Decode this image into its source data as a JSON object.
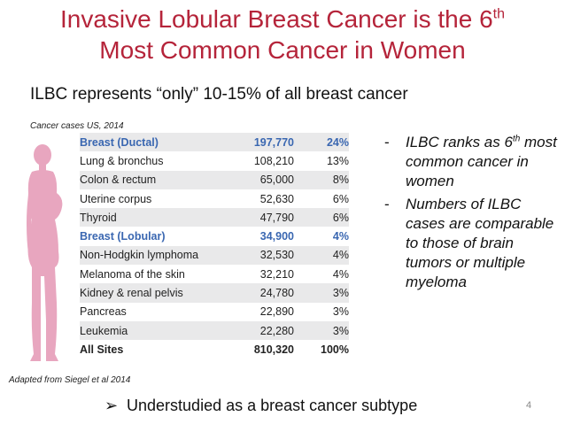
{
  "slide": {
    "title_line1_pre": "Invasive Lobular Breast Cancer is the 6",
    "title_line1_sup": "th",
    "title_line2": "Most Common Cancer in Women",
    "subtitle": "ILBC represents  “only” 10-15% of all breast cancer",
    "source_top": "Cancer cases US, 2014",
    "source_bottom": "Adapted from Siegel et al 2014",
    "bottom_line": "Understudied as a breast cancer subtype",
    "bottom_arrow": "➢",
    "page_number": "4"
  },
  "table": {
    "rows": [
      {
        "name": "Breast (Ductal)",
        "cases": "197,770",
        "pct": "24%"
      },
      {
        "name": "Lung & bronchus",
        "cases": "108,210",
        "pct": "13%"
      },
      {
        "name": "Colon & rectum",
        "cases": "65,000",
        "pct": "8%"
      },
      {
        "name": "Uterine corpus",
        "cases": "52,630",
        "pct": "6%"
      },
      {
        "name": "Thyroid",
        "cases": "47,790",
        "pct": "6%"
      },
      {
        "name": "Breast (Lobular)",
        "cases": "34,900",
        "pct": "4%"
      },
      {
        "name": "Non-Hodgkin lymphoma",
        "cases": "32,530",
        "pct": "4%"
      },
      {
        "name": "Melanoma of the skin",
        "cases": "32,210",
        "pct": "4%"
      },
      {
        "name": "Kidney & renal pelvis",
        "cases": "24,780",
        "pct": "3%"
      },
      {
        "name": "Pancreas",
        "cases": "22,890",
        "pct": "3%"
      },
      {
        "name": "Leukemia",
        "cases": "22,280",
        "pct": "3%"
      },
      {
        "name": "All Sites",
        "cases": "810,320",
        "pct": "100%"
      }
    ]
  },
  "bullets": [
    {
      "dash": "-",
      "pre": "ILBC ranks as 6",
      "sup": "th",
      "post": " most common cancer in women"
    },
    {
      "dash": "-",
      "pre": "Numbers of ILBC cases are comparable to those of brain tumors or multiple myeloma",
      "sup": "",
      "post": ""
    }
  ],
  "colors": {
    "title": "#b5243a",
    "highlight": "#3a67b1",
    "silhouette": "#e8a6bf"
  }
}
